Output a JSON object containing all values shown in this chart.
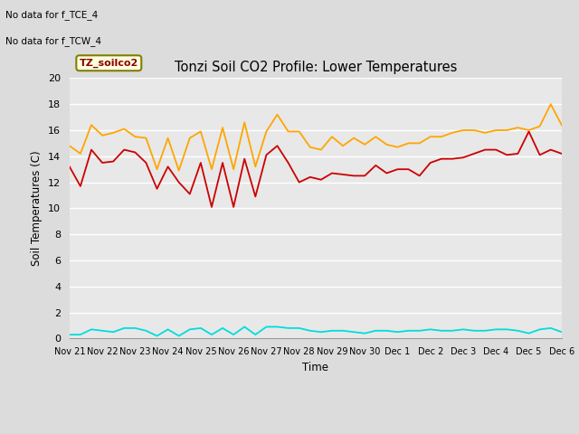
{
  "title": "Tonzi Soil CO2 Profile: Lower Temperatures",
  "ylabel": "Soil Temperatures (C)",
  "xlabel": "Time",
  "annotation_line1": "No data for f_TCE_4",
  "annotation_line2": "No data for f_TCW_4",
  "dataset_label": "TZ_soilco2",
  "ylim": [
    0,
    20
  ],
  "yticks": [
    0,
    2,
    4,
    6,
    8,
    10,
    12,
    14,
    16,
    18,
    20
  ],
  "xtick_labels": [
    "Nov 21",
    "Nov 22",
    "Nov 23",
    "Nov 24",
    "Nov 25",
    "Nov 26",
    "Nov 27",
    "Nov 28",
    "Nov 29",
    "Nov 30",
    "Dec 1",
    "Dec 2",
    "Dec 3",
    "Dec 4",
    "Dec 5",
    "Dec 6"
  ],
  "line_colors": {
    "open": "#CC0000",
    "tree": "#FFA500",
    "tree2": "#00DDDD"
  },
  "fig_color": "#DCDCDC",
  "plot_bg_color": "#E8E8E8",
  "grid_color": "#FFFFFF",
  "open_8cm": [
    13.2,
    11.7,
    14.5,
    13.5,
    13.6,
    14.5,
    14.3,
    13.5,
    11.5,
    13.2,
    12.0,
    11.1,
    13.5,
    10.1,
    13.5,
    10.1,
    13.8,
    10.9,
    14.1,
    14.8,
    13.5,
    12.0,
    12.4,
    12.2,
    12.7,
    12.6,
    12.5,
    12.5,
    13.3,
    12.7,
    13.0,
    13.0,
    12.5,
    13.5,
    13.8,
    13.8,
    13.9,
    14.2,
    14.5,
    14.5,
    14.1,
    14.2,
    15.9,
    14.1,
    14.5,
    14.2
  ],
  "tree_8cm": [
    14.8,
    14.2,
    16.4,
    15.6,
    15.8,
    16.1,
    15.5,
    15.4,
    13.0,
    15.4,
    12.9,
    15.4,
    15.9,
    13.0,
    16.2,
    13.0,
    16.6,
    13.2,
    15.9,
    17.2,
    15.9,
    15.9,
    14.7,
    14.5,
    15.5,
    14.8,
    15.4,
    14.9,
    15.5,
    14.9,
    14.7,
    15.0,
    15.0,
    15.5,
    15.5,
    15.8,
    16.0,
    16.0,
    15.8,
    16.0,
    16.0,
    16.2,
    16.0,
    16.3,
    18.0,
    16.4
  ],
  "tree2_8cm": [
    0.3,
    0.3,
    0.7,
    0.6,
    0.5,
    0.8,
    0.8,
    0.6,
    0.2,
    0.7,
    0.2,
    0.7,
    0.8,
    0.3,
    0.8,
    0.3,
    0.9,
    0.3,
    0.9,
    0.9,
    0.8,
    0.8,
    0.6,
    0.5,
    0.6,
    0.6,
    0.5,
    0.4,
    0.6,
    0.6,
    0.5,
    0.6,
    0.6,
    0.7,
    0.6,
    0.6,
    0.7,
    0.6,
    0.6,
    0.7,
    0.7,
    0.6,
    0.4,
    0.7,
    0.8,
    0.5
  ]
}
